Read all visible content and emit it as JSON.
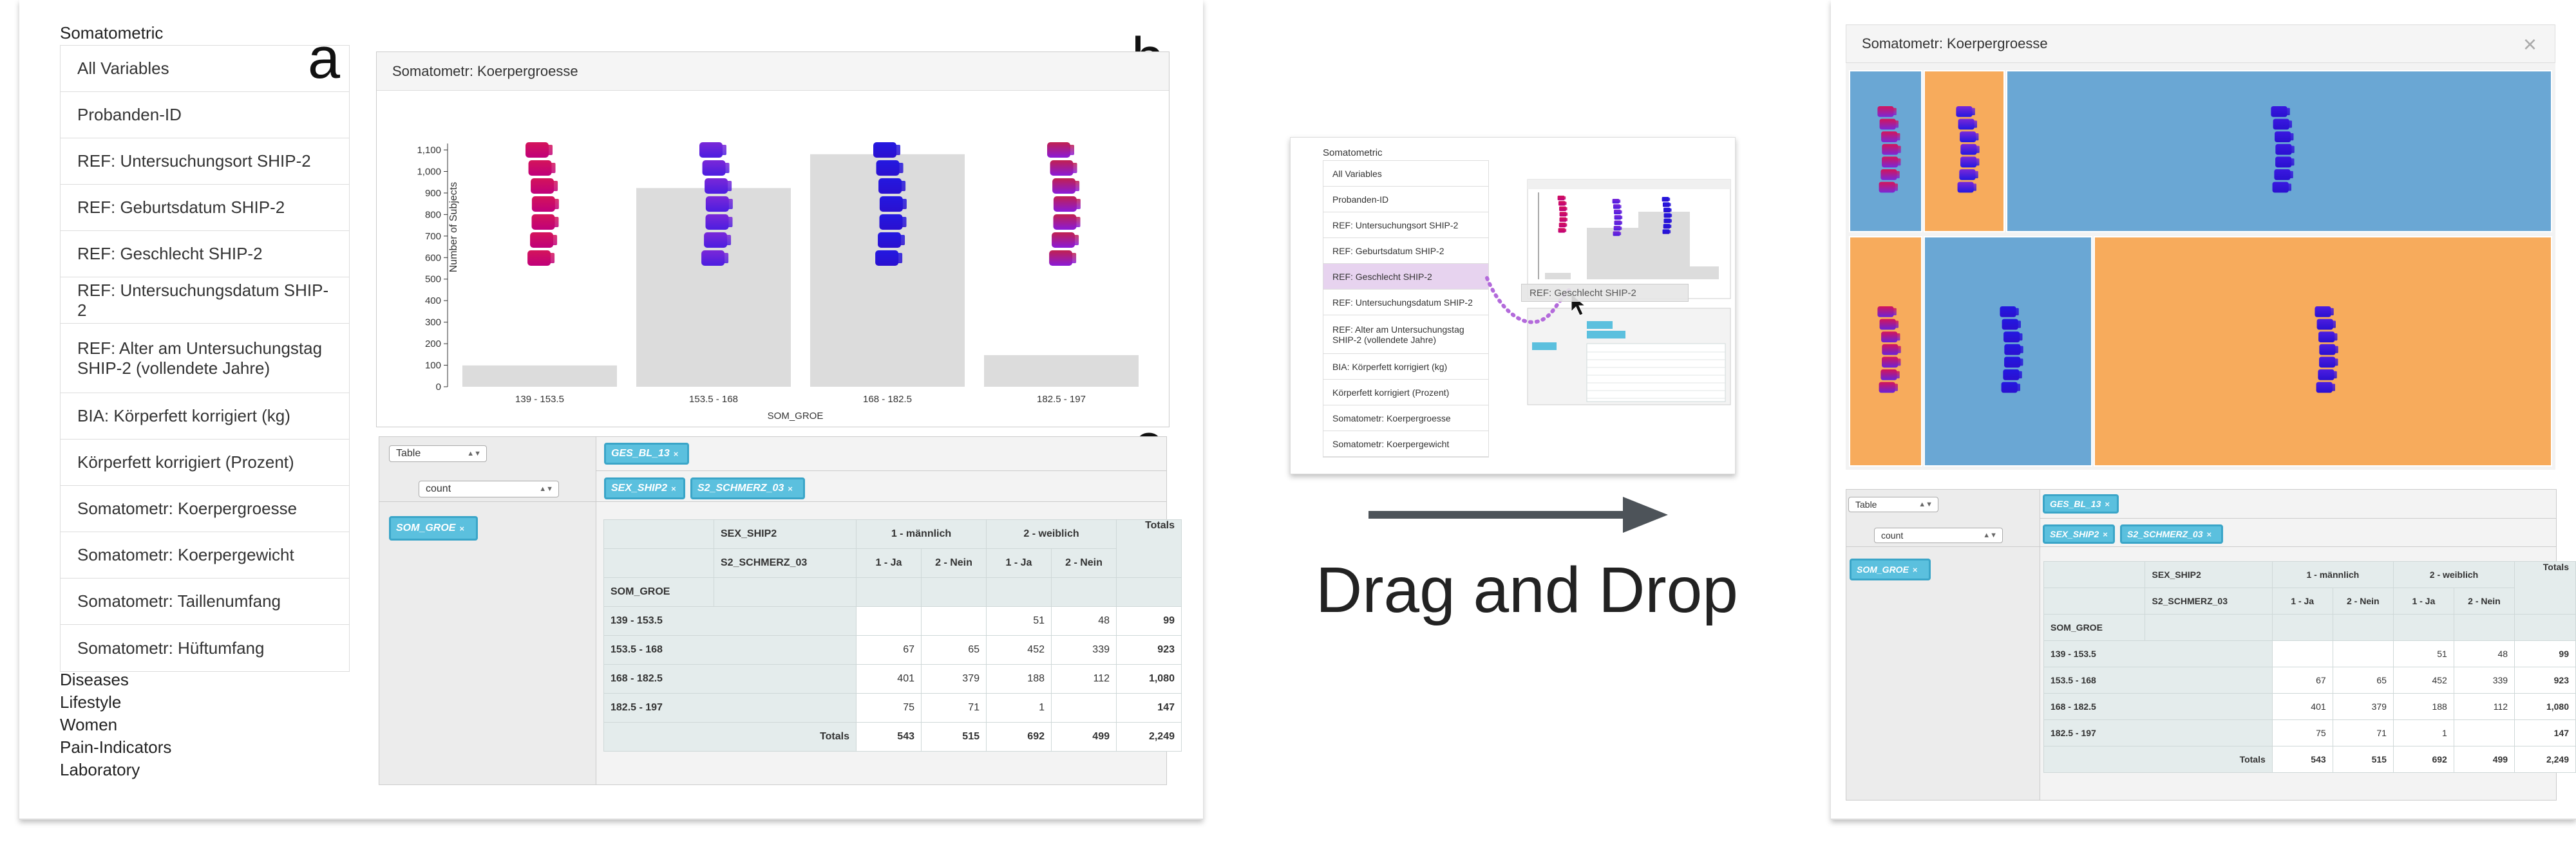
{
  "left": {
    "category_title": "Somatometric",
    "variables": [
      "All Variables",
      "Probanden-ID",
      "REF: Untersuchungsort SHIP-2",
      "REF: Geburtsdatum SHIP-2",
      "REF: Geschlecht SHIP-2",
      "REF: Untersuchungsdatum SHIP-2",
      "REF: Alter am Untersuchungstag SHIP-2 (vollendete Jahre)",
      "BIA: Körperfett korrigiert (kg)",
      "Körperfett korrigiert (Prozent)",
      "Somatometr: Koerpergroesse",
      "Somatometr: Koerpergewicht",
      "Somatometr: Taillenumfang",
      "Somatometr: Hüftumfang"
    ],
    "categories": [
      "Diseases",
      "Lifestyle",
      "Women",
      "Pain-Indicators",
      "Laboratory"
    ],
    "letters": {
      "a": "a",
      "b": "b",
      "c": "c"
    },
    "chart_title": "Somatometr: Koerpergroesse",
    "table_controls": {
      "renderer": "Table",
      "aggregator": "count"
    },
    "pills": {
      "col1": "GES_BL_13",
      "col2a": "SEX_SHIP2",
      "col2b": "S2_SCHMERZ_03",
      "row": "SOM_GROE"
    }
  },
  "chart_data": {
    "type": "bar",
    "categories": [
      "139 - 153.5",
      "153.5 - 168",
      "168 - 182.5",
      "182.5 - 197"
    ],
    "values": [
      99,
      923,
      1080,
      147
    ],
    "xlabel": "SOM_GROE",
    "ylabel": "Number of Subjects",
    "ylim": [
      0,
      1100
    ],
    "yticks": [
      "0",
      "100",
      "200",
      "300",
      "400",
      "500",
      "600",
      "700",
      "800",
      "900",
      "1,000",
      "1,100"
    ]
  },
  "pivot": {
    "col_var1": "SEX_SHIP2",
    "col_var2": "S2_SCHMERZ_03",
    "row_var": "SOM_GROE",
    "groups": [
      "1 - männlich",
      "2 - weiblich"
    ],
    "sub": [
      "1 - Ja",
      "2 - Nein",
      "1 - Ja",
      "2 - Nein"
    ],
    "totals_label": "Totals",
    "rows": [
      {
        "label": "139 - 153.5",
        "cells": [
          "",
          "",
          "51",
          "48"
        ],
        "total": "99"
      },
      {
        "label": "153.5 - 168",
        "cells": [
          "67",
          "65",
          "452",
          "339"
        ],
        "total": "923"
      },
      {
        "label": "168 - 182.5",
        "cells": [
          "401",
          "379",
          "188",
          "112"
        ],
        "total": "1,080"
      },
      {
        "label": "182.5 - 197",
        "cells": [
          "75",
          "71",
          "1",
          ""
        ],
        "total": "147"
      }
    ],
    "col_totals": [
      "543",
      "515",
      "692",
      "499"
    ],
    "grand_total": "2,249"
  },
  "middle": {
    "category_title": "Somatometric",
    "variables": [
      "All Variables",
      "Probanden-ID",
      "REF: Untersuchungsort SHIP-2",
      "REF: Geburtsdatum SHIP-2",
      "REF: Geschlecht SHIP-2",
      "REF: Untersuchungsdatum SHIP-2",
      "REF: Alter am Untersuchungstag SHIP-2 (vollendete Jahre)",
      "BIA: Körperfett korrigiert (kg)",
      "Körperfett korrigiert (Prozent)",
      "Somatometr: Koerpergroesse",
      "Somatometr: Koerpergewicht"
    ],
    "drag_ghost": "REF: Geschlecht SHIP-2",
    "caption": "Drag and Drop",
    "accent": "#e7d3ef",
    "dot_color": "#b36adb",
    "arrow_color": "#4d5359"
  },
  "right": {
    "chart_title": "Somatometr: Koerpergroesse",
    "close": "×",
    "treemap_colors": {
      "blue": "#6aa7d4",
      "orange": "#f7ab5c"
    }
  }
}
